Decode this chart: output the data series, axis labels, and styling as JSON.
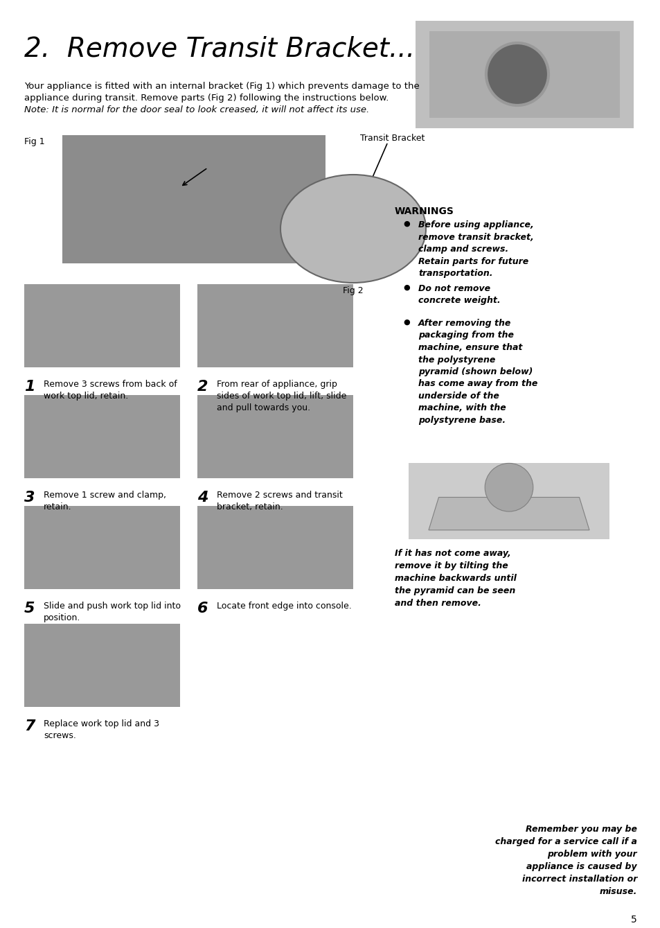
{
  "page_bg": "#ffffff",
  "page_width": 9.54,
  "page_height": 13.39,
  "title": "2.  Remove Transit Bracket...",
  "title_font_size": 28,
  "body_text1": "Your appliance is fitted with an internal bracket (Fig 1) which prevents damage to the",
  "body_text2": "appliance during transit. Remove parts (Fig 2) following the instructions below.",
  "body_text3": "Note: It is normal for the door seal to look creased, it will not affect its use.",
  "body_fontsize": 9.5,
  "warnings_title": "WARNINGS",
  "warnings_fontsize": 10,
  "warning1": "Before using appliance,\nremove transit bracket,\nclamp and screws.\nRetain parts for future\ntransportation.",
  "warning2": "Do not remove\nconcrete weight.",
  "warning3": "After removing the\npackaging from the\nmachine, ensure that\nthe polystyrene\npyramid (shown below)\nhas come away from the\nunderside of the\nmachine, with the\npolystyrene base.",
  "tilting_text": "If it has not come away,\nremove it by tilting the\nmachine backwards until\nthe pyramid can be seen\nand then remove.",
  "bottom_text": "Remember you may be\ncharged for a service call if a\nproblem with your\nappliance is caused by\nincorrect installation or\nmisuse.",
  "page_number": "5",
  "step1_num": "1",
  "step1_text": "Remove 3 screws from back of\nwork top lid, retain.",
  "step2_num": "2",
  "step2_text": "From rear of appliance, grip\nsides of work top lid, lift, slide\nand pull towards you.",
  "step3_num": "3",
  "step3_text": "Remove 1 screw and clamp,\nretain.",
  "step4_num": "4",
  "step4_text": "Remove 2 screws and transit\nbracket, retain.",
  "step5_num": "5",
  "step5_text": "Slide and push work top lid into\nposition.",
  "step6_num": "6",
  "step6_text": "Locate front edge into console.",
  "step7_num": "7",
  "step7_text": "Replace work top lid and 3\nscrews.",
  "fig1_label": "Fig 1",
  "fig2_label": "Fig 2",
  "transit_bracket_label": "Transit Bracket"
}
